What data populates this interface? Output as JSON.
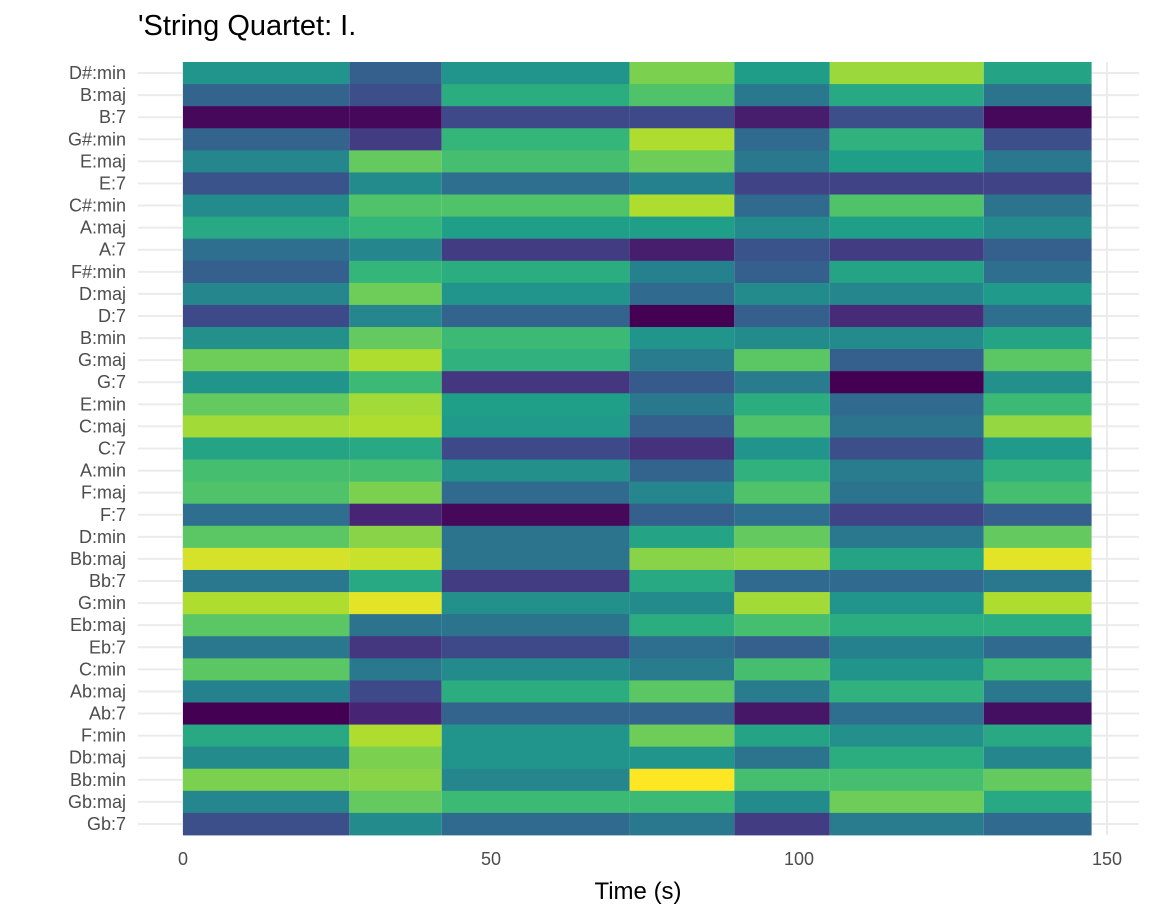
{
  "chart_data": {
    "type": "heatmap",
    "title": "'String Quartet: I.",
    "xlabel": "Time (s)",
    "ylabel": "",
    "xlim": [
      -3,
      150
    ],
    "x_ticks": [
      0,
      50,
      100,
      150
    ],
    "grid": true,
    "legend": "none",
    "colormap": "viridis",
    "value_range": [
      0,
      1
    ],
    "segments": [
      0,
      27,
      42,
      72.5,
      89.5,
      105,
      130,
      147.5
    ],
    "chords": [
      "D#:min",
      "B:maj",
      "B:7",
      "G#:min",
      "E:maj",
      "E:7",
      "C#:min",
      "A:maj",
      "A:7",
      "F#:min",
      "D:maj",
      "D:7",
      "B:min",
      "G:maj",
      "G:7",
      "E:min",
      "C:maj",
      "C:7",
      "A:min",
      "F:maj",
      "F:7",
      "D:min",
      "Bb:maj",
      "Bb:7",
      "G:min",
      "Eb:maj",
      "Eb:7",
      "C:min",
      "Ab:maj",
      "Ab:7",
      "F:min",
      "Db:maj",
      "Bb:min",
      "Gb:maj",
      "Gb:7"
    ],
    "values": [
      [
        0.52,
        0.3,
        0.52,
        0.8,
        0.55,
        0.85,
        0.58
      ],
      [
        0.32,
        0.24,
        0.62,
        0.72,
        0.4,
        0.6,
        0.38
      ],
      [
        0.02,
        0.02,
        0.22,
        0.22,
        0.08,
        0.24,
        0.02
      ],
      [
        0.32,
        0.18,
        0.66,
        0.88,
        0.34,
        0.64,
        0.24
      ],
      [
        0.46,
        0.76,
        0.7,
        0.78,
        0.4,
        0.56,
        0.4
      ],
      [
        0.26,
        0.48,
        0.36,
        0.44,
        0.2,
        0.2,
        0.2
      ],
      [
        0.48,
        0.72,
        0.72,
        0.88,
        0.34,
        0.72,
        0.38
      ],
      [
        0.6,
        0.66,
        0.56,
        0.56,
        0.48,
        0.56,
        0.48
      ],
      [
        0.36,
        0.46,
        0.18,
        0.08,
        0.26,
        0.18,
        0.3
      ],
      [
        0.3,
        0.66,
        0.62,
        0.44,
        0.3,
        0.58,
        0.36
      ],
      [
        0.46,
        0.78,
        0.52,
        0.34,
        0.48,
        0.46,
        0.54
      ],
      [
        0.22,
        0.46,
        0.32,
        0.0,
        0.3,
        0.12,
        0.36
      ],
      [
        0.5,
        0.76,
        0.68,
        0.52,
        0.48,
        0.48,
        0.58
      ],
      [
        0.78,
        0.88,
        0.64,
        0.42,
        0.74,
        0.3,
        0.74
      ],
      [
        0.52,
        0.68,
        0.16,
        0.28,
        0.42,
        0.0,
        0.5
      ],
      [
        0.76,
        0.86,
        0.56,
        0.4,
        0.62,
        0.34,
        0.68
      ],
      [
        0.86,
        0.88,
        0.54,
        0.3,
        0.72,
        0.38,
        0.84
      ],
      [
        0.58,
        0.6,
        0.22,
        0.14,
        0.52,
        0.24,
        0.54
      ],
      [
        0.7,
        0.7,
        0.5,
        0.32,
        0.64,
        0.42,
        0.64
      ],
      [
        0.72,
        0.8,
        0.34,
        0.46,
        0.72,
        0.38,
        0.7
      ],
      [
        0.36,
        0.1,
        0.02,
        0.3,
        0.36,
        0.2,
        0.3
      ],
      [
        0.74,
        0.82,
        0.38,
        0.58,
        0.76,
        0.4,
        0.76
      ],
      [
        0.94,
        0.92,
        0.38,
        0.82,
        0.84,
        0.58,
        0.96
      ],
      [
        0.4,
        0.6,
        0.18,
        0.6,
        0.34,
        0.34,
        0.4
      ],
      [
        0.88,
        0.96,
        0.5,
        0.48,
        0.86,
        0.52,
        0.88
      ],
      [
        0.74,
        0.38,
        0.38,
        0.62,
        0.7,
        0.62,
        0.62
      ],
      [
        0.4,
        0.16,
        0.22,
        0.36,
        0.3,
        0.44,
        0.34
      ],
      [
        0.74,
        0.4,
        0.48,
        0.42,
        0.7,
        0.52,
        0.68
      ],
      [
        0.44,
        0.22,
        0.62,
        0.74,
        0.42,
        0.64,
        0.4
      ],
      [
        0.0,
        0.1,
        0.32,
        0.32,
        0.06,
        0.36,
        0.04
      ],
      [
        0.6,
        0.88,
        0.52,
        0.78,
        0.58,
        0.5,
        0.6
      ],
      [
        0.48,
        0.8,
        0.52,
        0.52,
        0.38,
        0.62,
        0.46
      ],
      [
        0.8,
        0.82,
        0.46,
        1.0,
        0.7,
        0.7,
        0.76
      ],
      [
        0.46,
        0.76,
        0.68,
        0.68,
        0.48,
        0.78,
        0.6
      ],
      [
        0.24,
        0.48,
        0.34,
        0.4,
        0.18,
        0.42,
        0.34
      ]
    ]
  }
}
